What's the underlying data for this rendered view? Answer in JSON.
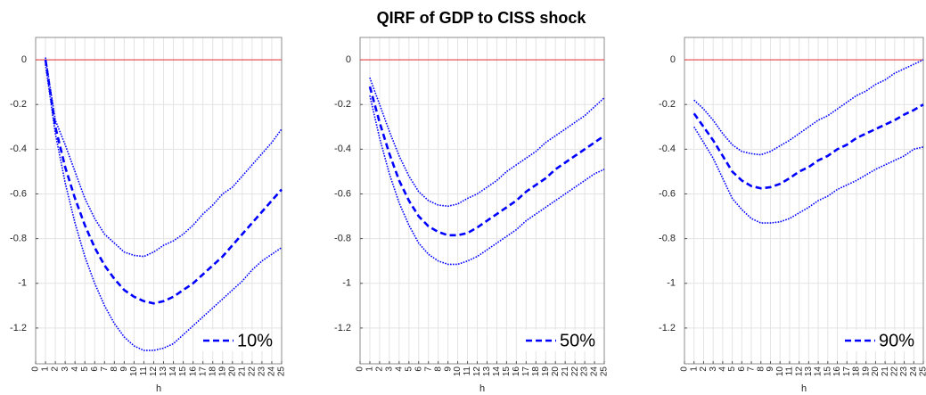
{
  "title": "QIRF of GDP to CISS shock",
  "chart_data": [
    {
      "type": "line",
      "xlabel": "h",
      "x": [
        1,
        2,
        3,
        4,
        5,
        6,
        7,
        8,
        9,
        10,
        11,
        12,
        13,
        14,
        15,
        16,
        17,
        18,
        19,
        20,
        21,
        22,
        23,
        24,
        25
      ],
      "xlim": [
        0,
        25
      ],
      "xticks": [
        0,
        1,
        2,
        3,
        4,
        5,
        6,
        7,
        8,
        9,
        10,
        11,
        12,
        13,
        14,
        15,
        16,
        17,
        18,
        19,
        20,
        21,
        22,
        23,
        24,
        25
      ],
      "ylim": [
        -1.36,
        0.1
      ],
      "yticks": [
        0,
        -0.2,
        -0.4,
        -0.6,
        -0.8,
        -1,
        -1.2
      ],
      "grid": true,
      "legend": "lower right",
      "hline": 0,
      "hline_color": "#e8464a",
      "series": [
        {
          "name": "10%",
          "color": "#0000ff",
          "style": "dashed",
          "values": [
            0,
            -0.3,
            -0.48,
            -0.62,
            -0.74,
            -0.84,
            -0.92,
            -0.98,
            -1.03,
            -1.06,
            -1.08,
            -1.09,
            -1.08,
            -1.06,
            -1.03,
            -1,
            -0.96,
            -0.92,
            -0.88,
            -0.83,
            -0.78,
            -0.73,
            -0.68,
            -0.63,
            -0.58
          ]
        },
        {
          "color": "#0000ff",
          "style": "dotted",
          "values": [
            0.01,
            -0.27,
            -0.38,
            -0.5,
            -0.62,
            -0.71,
            -0.78,
            -0.82,
            -0.86,
            -0.875,
            -0.88,
            -0.86,
            -0.83,
            -0.81,
            -0.78,
            -0.74,
            -0.69,
            -0.65,
            -0.6,
            -0.57,
            -0.52,
            -0.47,
            -0.42,
            -0.37,
            -0.31
          ]
        },
        {
          "color": "#0000ff",
          "style": "dotted",
          "values": [
            -0.02,
            -0.33,
            -0.55,
            -0.73,
            -0.88,
            -1,
            -1.1,
            -1.18,
            -1.24,
            -1.28,
            -1.3,
            -1.3,
            -1.29,
            -1.27,
            -1.23,
            -1.19,
            -1.15,
            -1.11,
            -1.07,
            -1.03,
            -0.99,
            -0.94,
            -0.9,
            -0.87,
            -0.84
          ]
        }
      ]
    },
    {
      "type": "line",
      "xlabel": "h",
      "x": [
        1,
        2,
        3,
        4,
        5,
        6,
        7,
        8,
        9,
        10,
        11,
        12,
        13,
        14,
        15,
        16,
        17,
        18,
        19,
        20,
        21,
        22,
        23,
        24,
        25
      ],
      "xlim": [
        0,
        25
      ],
      "xticks": [
        0,
        1,
        2,
        3,
        4,
        5,
        6,
        7,
        8,
        9,
        10,
        11,
        12,
        13,
        14,
        15,
        16,
        17,
        18,
        19,
        20,
        21,
        22,
        23,
        24,
        25
      ],
      "ylim": [
        -1.36,
        0.1
      ],
      "yticks": [
        0,
        -0.2,
        -0.4,
        -0.6,
        -0.8,
        -1,
        -1.2
      ],
      "grid": true,
      "legend": "lower right",
      "hline": 0,
      "hline_color": "#e8464a",
      "series": [
        {
          "name": "50%",
          "color": "#0000ff",
          "style": "dashed",
          "values": [
            -0.12,
            -0.28,
            -0.42,
            -0.54,
            -0.63,
            -0.7,
            -0.745,
            -0.77,
            -0.785,
            -0.785,
            -0.775,
            -0.75,
            -0.72,
            -0.69,
            -0.66,
            -0.63,
            -0.59,
            -0.56,
            -0.53,
            -0.49,
            -0.46,
            -0.43,
            -0.4,
            -0.37,
            -0.34
          ]
        },
        {
          "color": "#0000ff",
          "style": "dotted",
          "values": [
            -0.08,
            -0.2,
            -0.32,
            -0.43,
            -0.52,
            -0.59,
            -0.63,
            -0.65,
            -0.655,
            -0.645,
            -0.62,
            -0.6,
            -0.57,
            -0.54,
            -0.5,
            -0.47,
            -0.44,
            -0.41,
            -0.37,
            -0.34,
            -0.31,
            -0.28,
            -0.25,
            -0.21,
            -0.17
          ]
        },
        {
          "color": "#0000ff",
          "style": "dotted",
          "values": [
            -0.16,
            -0.35,
            -0.51,
            -0.64,
            -0.74,
            -0.82,
            -0.87,
            -0.9,
            -0.915,
            -0.915,
            -0.9,
            -0.88,
            -0.85,
            -0.82,
            -0.79,
            -0.76,
            -0.72,
            -0.69,
            -0.66,
            -0.63,
            -0.6,
            -0.57,
            -0.54,
            -0.51,
            -0.49
          ]
        }
      ]
    },
    {
      "type": "line",
      "xlabel": "h",
      "x": [
        1,
        2,
        3,
        4,
        5,
        6,
        7,
        8,
        9,
        10,
        11,
        12,
        13,
        14,
        15,
        16,
        17,
        18,
        19,
        20,
        21,
        22,
        23,
        24,
        25
      ],
      "xlim": [
        0,
        25
      ],
      "xticks": [
        0,
        1,
        2,
        3,
        4,
        5,
        6,
        7,
        8,
        9,
        10,
        11,
        12,
        13,
        14,
        15,
        16,
        17,
        18,
        19,
        20,
        21,
        22,
        23,
        24,
        25
      ],
      "ylim": [
        -1.36,
        0.1
      ],
      "yticks": [
        0,
        -0.2,
        -0.4,
        -0.6,
        -0.8,
        -1,
        -1.2
      ],
      "grid": true,
      "legend": "lower right",
      "hline": 0,
      "hline_color": "#e8464a",
      "series": [
        {
          "name": "90%",
          "color": "#0000ff",
          "style": "dashed",
          "values": [
            -0.24,
            -0.3,
            -0.36,
            -0.43,
            -0.5,
            -0.54,
            -0.565,
            -0.575,
            -0.57,
            -0.555,
            -0.53,
            -0.5,
            -0.48,
            -0.45,
            -0.43,
            -0.4,
            -0.38,
            -0.35,
            -0.33,
            -0.31,
            -0.29,
            -0.27,
            -0.245,
            -0.225,
            -0.2
          ]
        },
        {
          "color": "#0000ff",
          "style": "dotted",
          "values": [
            -0.18,
            -0.22,
            -0.27,
            -0.33,
            -0.38,
            -0.41,
            -0.42,
            -0.425,
            -0.41,
            -0.385,
            -0.36,
            -0.33,
            -0.3,
            -0.27,
            -0.25,
            -0.22,
            -0.19,
            -0.16,
            -0.14,
            -0.11,
            -0.09,
            -0.06,
            -0.04,
            -0.02,
            0
          ]
        },
        {
          "color": "#0000ff",
          "style": "dotted",
          "values": [
            -0.3,
            -0.37,
            -0.44,
            -0.53,
            -0.62,
            -0.67,
            -0.71,
            -0.73,
            -0.73,
            -0.725,
            -0.71,
            -0.685,
            -0.66,
            -0.63,
            -0.61,
            -0.58,
            -0.56,
            -0.54,
            -0.515,
            -0.49,
            -0.47,
            -0.45,
            -0.43,
            -0.4,
            -0.39
          ]
        }
      ]
    }
  ]
}
